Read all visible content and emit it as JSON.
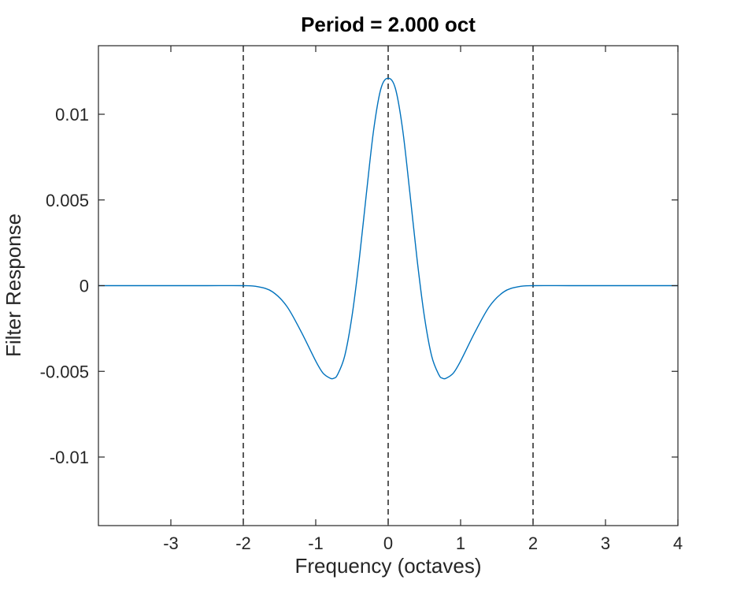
{
  "chart_data": {
    "type": "line",
    "title": "Period = 2.000 oct",
    "xlabel": "Frequency (octaves)",
    "ylabel": "Filter Response",
    "xlim": [
      -4,
      4
    ],
    "ylim": [
      -0.014,
      0.014
    ],
    "xticks": [
      -3,
      -2,
      -1,
      0,
      1,
      2,
      3,
      4
    ],
    "xtick_labels": [
      "-3",
      "-2",
      "-1",
      "0",
      "1",
      "2",
      "3",
      "4"
    ],
    "yticks": [
      -0.01,
      -0.005,
      0,
      0.005,
      0.01
    ],
    "ytick_labels": [
      "-0.01",
      "-0.005",
      "0",
      "0.005",
      "0.01"
    ],
    "grid": false,
    "line_color": "#0072BD",
    "reference_line_color": "#000000",
    "reference_lines_x": [
      -2,
      0,
      2
    ],
    "series": [
      {
        "x": [
          -4,
          -3,
          -2.5,
          -2,
          -1.8,
          -1.6,
          -1.4,
          -1.2,
          -1.0,
          -0.9,
          -0.8,
          -0.75,
          -0.7,
          -0.6,
          -0.5,
          -0.4,
          -0.3,
          -0.2,
          -0.1,
          0,
          0.1,
          0.2,
          0.3,
          0.4,
          0.5,
          0.6,
          0.7,
          0.75,
          0.8,
          0.9,
          1.0,
          1.2,
          1.4,
          1.6,
          1.8,
          2,
          2.5,
          3,
          4
        ],
        "y": [
          0,
          0,
          0,
          0,
          -6e-05,
          -0.00035,
          -0.0012,
          -0.0027,
          -0.0044,
          -0.0051,
          -0.0054,
          -0.0054,
          -0.0052,
          -0.0041,
          -0.0018,
          0.0015,
          0.0054,
          0.0091,
          0.0115,
          0.0121,
          0.0115,
          0.0091,
          0.0054,
          0.0015,
          -0.0018,
          -0.0041,
          -0.0052,
          -0.0054,
          -0.0054,
          -0.0051,
          -0.0044,
          -0.0027,
          -0.0012,
          -0.00035,
          -6e-05,
          0,
          0,
          0,
          0
        ]
      }
    ]
  }
}
